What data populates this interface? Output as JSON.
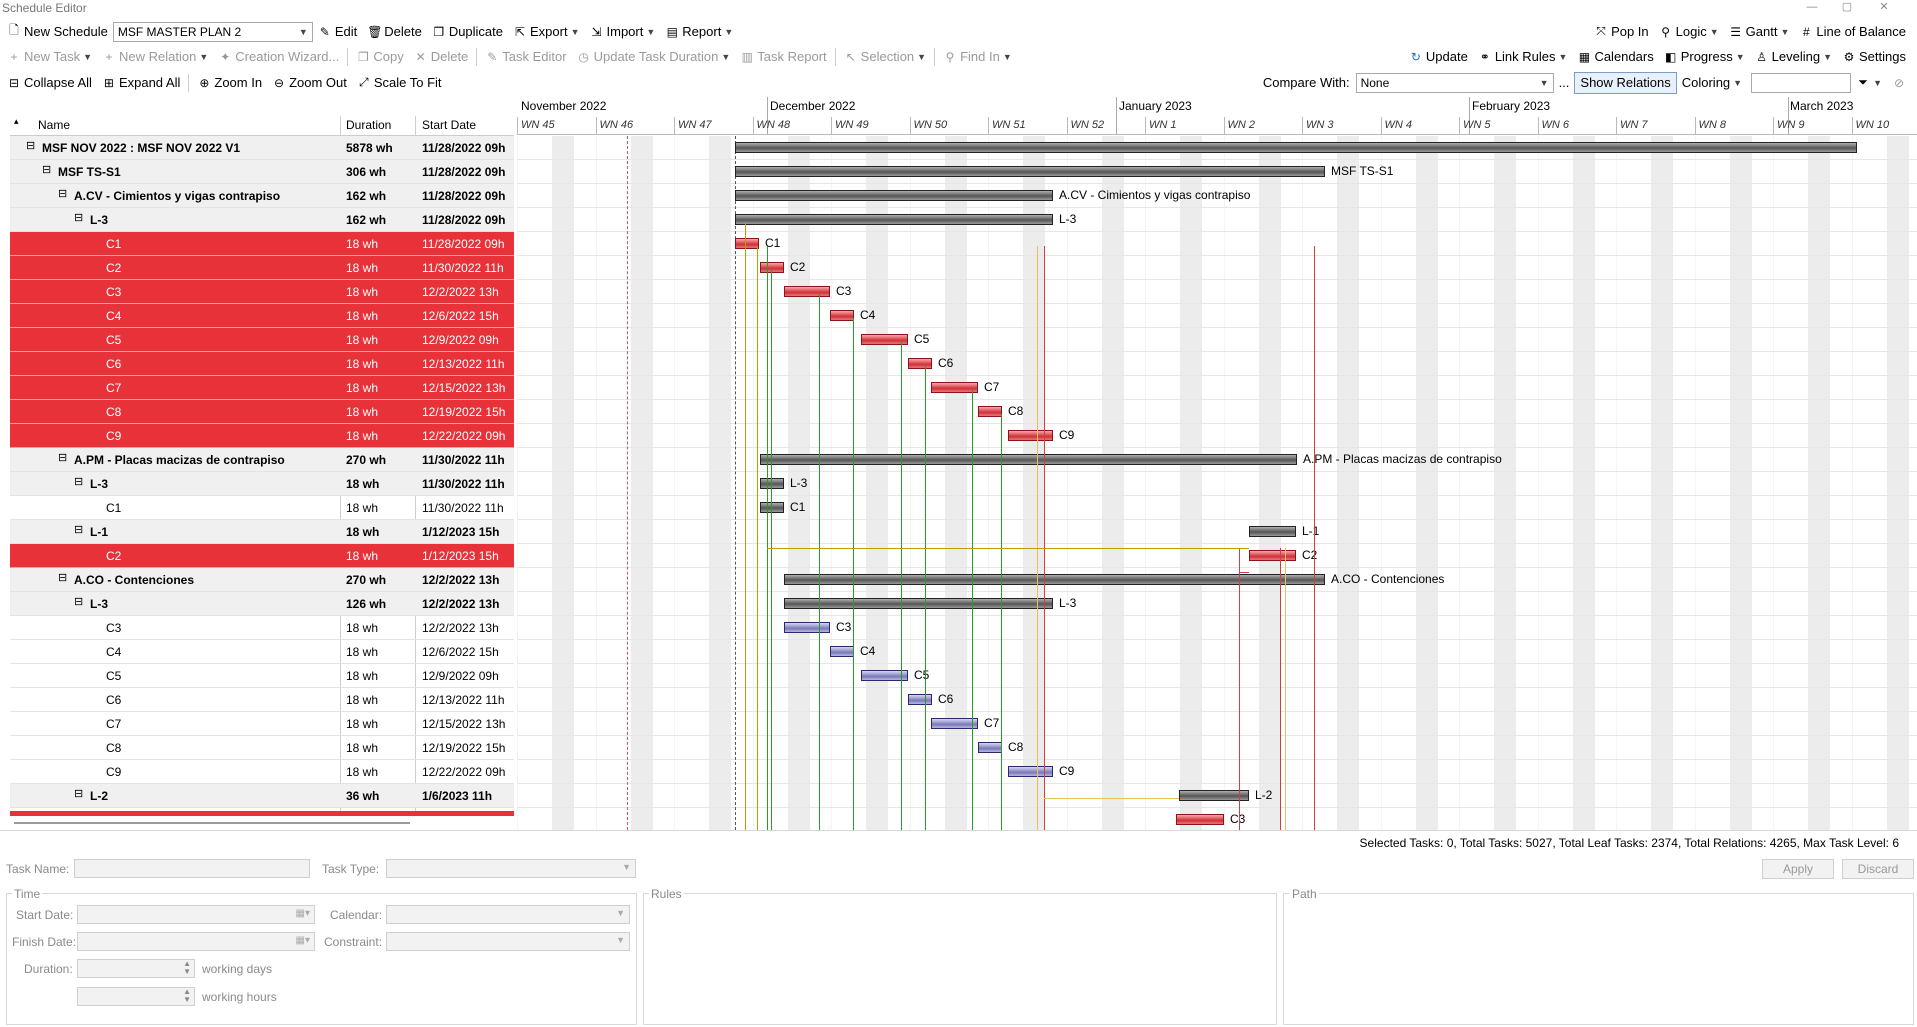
{
  "window": {
    "title": "Schedule Editor"
  },
  "toolbar1": {
    "new_schedule": "New Schedule",
    "schedule_select": "MSF MASTER PLAN 2",
    "edit": "Edit",
    "delete": "Delete",
    "duplicate": "Duplicate",
    "export": "Export",
    "import": "Import",
    "report": "Report",
    "pop_in": "Pop In",
    "logic": "Logic",
    "gantt": "Gantt",
    "line_of_balance": "Line of Balance"
  },
  "toolbar2": {
    "new_task": "New Task",
    "new_relation": "New Relation",
    "creation_wizard": "Creation Wizard...",
    "copy": "Copy",
    "delete": "Delete",
    "task_editor": "Task Editor",
    "update_task_duration": "Update Task Duration",
    "task_report": "Task Report",
    "selection": "Selection",
    "find_in": "Find In",
    "update": "Update",
    "link_rules": "Link Rules",
    "calendars": "Calendars",
    "progress": "Progress",
    "leveling": "Leveling",
    "settings": "Settings"
  },
  "toolbar3": {
    "collapse_all": "Collapse All",
    "expand_all": "Expand All",
    "zoom_in": "Zoom In",
    "zoom_out": "Zoom Out",
    "scale_to_fit": "Scale To Fit",
    "compare_with_label": "Compare With:",
    "compare_value": "None",
    "ellipsis": "...",
    "show_relations": "Show Relations",
    "coloring": "Coloring"
  },
  "grid": {
    "columns": [
      "Name",
      "Duration",
      "Start Date"
    ],
    "rows": [
      {
        "name": "MSF NOV 2022 : MSF NOV 2022 V1",
        "dur": "5878 wh",
        "start": "11/28/2022 09h",
        "lvl": 0,
        "bold": true,
        "sel": false
      },
      {
        "name": "MSF TS-S1",
        "dur": "306 wh",
        "start": "11/28/2022 09h",
        "lvl": 1,
        "bold": true,
        "sel": false
      },
      {
        "name": "A.CV - Cimientos y vigas contrapiso",
        "dur": "162 wh",
        "start": "11/28/2022 09h",
        "lvl": 2,
        "bold": true,
        "sel": false
      },
      {
        "name": "L-3",
        "dur": "162 wh",
        "start": "11/28/2022 09h",
        "lvl": 3,
        "bold": true,
        "sel": false
      },
      {
        "name": "C1",
        "dur": "18 wh",
        "start": "11/28/2022 09h",
        "lvl": 4,
        "bold": false,
        "sel": true
      },
      {
        "name": "C2",
        "dur": "18 wh",
        "start": "11/30/2022 11h",
        "lvl": 4,
        "bold": false,
        "sel": true
      },
      {
        "name": "C3",
        "dur": "18 wh",
        "start": "12/2/2022 13h",
        "lvl": 4,
        "bold": false,
        "sel": true
      },
      {
        "name": "C4",
        "dur": "18 wh",
        "start": "12/6/2022 15h",
        "lvl": 4,
        "bold": false,
        "sel": true
      },
      {
        "name": "C5",
        "dur": "18 wh",
        "start": "12/9/2022 09h",
        "lvl": 4,
        "bold": false,
        "sel": true
      },
      {
        "name": "C6",
        "dur": "18 wh",
        "start": "12/13/2022 11h",
        "lvl": 4,
        "bold": false,
        "sel": true
      },
      {
        "name": "C7",
        "dur": "18 wh",
        "start": "12/15/2022 13h",
        "lvl": 4,
        "bold": false,
        "sel": true
      },
      {
        "name": "C8",
        "dur": "18 wh",
        "start": "12/19/2022 15h",
        "lvl": 4,
        "bold": false,
        "sel": true
      },
      {
        "name": "C9",
        "dur": "18 wh",
        "start": "12/22/2022 09h",
        "lvl": 4,
        "bold": false,
        "sel": true
      },
      {
        "name": "A.PM - Placas macizas de contrapiso",
        "dur": "270 wh",
        "start": "11/30/2022 11h",
        "lvl": 2,
        "bold": true,
        "sel": false
      },
      {
        "name": "L-3",
        "dur": "18 wh",
        "start": "11/30/2022 11h",
        "lvl": 3,
        "bold": true,
        "sel": false
      },
      {
        "name": "C1",
        "dur": "18 wh",
        "start": "11/30/2022 11h",
        "lvl": 4,
        "bold": false,
        "sel": false
      },
      {
        "name": "L-1",
        "dur": "18 wh",
        "start": "1/12/2023 15h",
        "lvl": 3,
        "bold": true,
        "sel": false
      },
      {
        "name": "C2",
        "dur": "18 wh",
        "start": "1/12/2023 15h",
        "lvl": 4,
        "bold": false,
        "sel": true
      },
      {
        "name": "A.CO - Contenciones",
        "dur": "270 wh",
        "start": "12/2/2022 13h",
        "lvl": 2,
        "bold": true,
        "sel": false
      },
      {
        "name": "L-3",
        "dur": "126 wh",
        "start": "12/2/2022 13h",
        "lvl": 3,
        "bold": true,
        "sel": false
      },
      {
        "name": "C3",
        "dur": "18 wh",
        "start": "12/2/2022 13h",
        "lvl": 4,
        "bold": false,
        "sel": false
      },
      {
        "name": "C4",
        "dur": "18 wh",
        "start": "12/6/2022 15h",
        "lvl": 4,
        "bold": false,
        "sel": false
      },
      {
        "name": "C5",
        "dur": "18 wh",
        "start": "12/9/2022 09h",
        "lvl": 4,
        "bold": false,
        "sel": false
      },
      {
        "name": "C6",
        "dur": "18 wh",
        "start": "12/13/2022 11h",
        "lvl": 4,
        "bold": false,
        "sel": false
      },
      {
        "name": "C7",
        "dur": "18 wh",
        "start": "12/15/2022 13h",
        "lvl": 4,
        "bold": false,
        "sel": false
      },
      {
        "name": "C8",
        "dur": "18 wh",
        "start": "12/19/2022 15h",
        "lvl": 4,
        "bold": false,
        "sel": false
      },
      {
        "name": "C9",
        "dur": "18 wh",
        "start": "12/22/2022 09h",
        "lvl": 4,
        "bold": false,
        "sel": false
      },
      {
        "name": "L-2",
        "dur": "36 wh",
        "start": "1/6/2023 11h",
        "lvl": 3,
        "bold": true,
        "sel": false
      }
    ]
  },
  "timeline": {
    "months": [
      "November 2022",
      "December 2022",
      "January 2023",
      "February 2023",
      "March 2023"
    ],
    "weeks": [
      "WN 45",
      "WN 46",
      "WN 47",
      "WN 48",
      "WN 49",
      "WN 50",
      "WN 51",
      "WN 52",
      "WN 1",
      "WN 2",
      "WN 3",
      "WN 4",
      "WN 5",
      "WN 6",
      "WN 7",
      "WN 8",
      "WN 9",
      "WN 10"
    ]
  },
  "gantt_labels": [
    "MSF TS-S1",
    "A.CV - Cimientos y vigas contrapiso",
    "L-3",
    "C1",
    "C2",
    "C3",
    "C4",
    "C5",
    "C6",
    "C7",
    "C8",
    "C9",
    "A.PM - Placas macizas de contrapiso",
    "L-3",
    "C1",
    "L-1",
    "C2",
    "A.CO - Contenciones",
    "L-3",
    "C3",
    "C4",
    "C5",
    "C6",
    "C7",
    "C8",
    "C9",
    "L-2",
    "C3"
  ],
  "status": "Selected Tasks: 0, Total Tasks: 5027, Total Leaf Tasks: 2374, Total Relations: 4265, Max Task Level: 6",
  "form": {
    "task_name": "Task Name:",
    "task_type": "Task Type:",
    "apply": "Apply",
    "discard": "Discard",
    "time": "Time",
    "rules": "Rules",
    "path": "Path",
    "start_date": "Start Date:",
    "finish_date": "Finish Date:",
    "calendar": "Calendar:",
    "constraint": "Constraint:",
    "duration": "Duration:",
    "working_days": "working days",
    "working_hours": "working hours"
  }
}
